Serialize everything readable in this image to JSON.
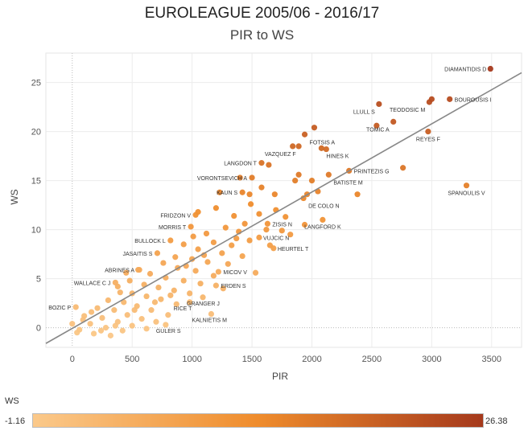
{
  "title": "EUROLEAGUE 2005/06 - 2016/17",
  "subtitle": "PIR to WS",
  "colors": {
    "low": "#fbc98a",
    "mid": "#ef8c2c",
    "high": "#a5391c",
    "trend": "#888888"
  },
  "legend": {
    "title": "WS",
    "min_label": "-1.16",
    "max_label": "26.38"
  },
  "chart_data": {
    "type": "scatter",
    "title": "EUROLEAGUE 2005/06 - 2016/17",
    "subtitle": "PIR to WS",
    "xlabel": "PIR",
    "ylabel": "WS",
    "xlim": [
      -220,
      3750
    ],
    "ylim": [
      -2,
      28
    ],
    "xticks": [
      0,
      500,
      1000,
      1500,
      2000,
      2500,
      3000,
      3500
    ],
    "yticks": [
      0,
      5,
      10,
      15,
      20,
      25
    ],
    "trend_line": {
      "x": [
        -220,
        3750
      ],
      "y": [
        -1.6,
        26.0
      ]
    },
    "color_range": [
      -1.16,
      26.38
    ],
    "labeled_points": [
      {
        "name": "DIAMANTIDIS D",
        "x": 3490,
        "y": 26.4
      },
      {
        "name": "BOUROUSIS I",
        "x": 3150,
        "y": 23.3
      },
      {
        "name": "LLULL S",
        "x": 2560,
        "y": 22.8
      },
      {
        "name": "TEODOSIC M",
        "x": 2980,
        "y": 23.0
      },
      {
        "name": "TOMIC A",
        "x": 2680,
        "y": 21.0
      },
      {
        "name": "REYES F",
        "x": 2970,
        "y": 20.0
      },
      {
        "name": "FOTSIS A",
        "x": 1940,
        "y": 19.7
      },
      {
        "name": "VAZQUEZ F",
        "x": 1840,
        "y": 18.5
      },
      {
        "name": "HINES K",
        "x": 2080,
        "y": 18.3
      },
      {
        "name": "LANGDON T",
        "x": 1580,
        "y": 16.8
      },
      {
        "name": "PRINTEZIS G",
        "x": 2310,
        "y": 16.0
      },
      {
        "name": "BATISTE M",
        "x": 2140,
        "y": 15.6
      },
      {
        "name": "VORONTSEVICH A",
        "x": 1500,
        "y": 15.3
      },
      {
        "name": "KAUN S",
        "x": 1420,
        "y": 13.8
      },
      {
        "name": "DE COLO N",
        "x": 1930,
        "y": 13.2
      },
      {
        "name": "SPANOULIS V",
        "x": 3290,
        "y": 14.5
      },
      {
        "name": "FRIDZON V",
        "x": 1030,
        "y": 11.5
      },
      {
        "name": "MORRIS T",
        "x": 990,
        "y": 10.3
      },
      {
        "name": "ZISIS N",
        "x": 1630,
        "y": 10.6
      },
      {
        "name": "LANGFORD K",
        "x": 2090,
        "y": 11.0
      },
      {
        "name": "BULLOCK L",
        "x": 820,
        "y": 8.9
      },
      {
        "name": "VUJCIC N",
        "x": 1560,
        "y": 9.2
      },
      {
        "name": "HEURTEL T",
        "x": 1680,
        "y": 8.1
      },
      {
        "name": "JASAITIS S",
        "x": 710,
        "y": 7.6
      },
      {
        "name": "ABRINES A",
        "x": 560,
        "y": 5.9
      },
      {
        "name": "MICOV V",
        "x": 1220,
        "y": 5.7
      },
      {
        "name": "WALLACE C J",
        "x": 360,
        "y": 4.6
      },
      {
        "name": "ERDEN S",
        "x": 1200,
        "y": 4.3
      },
      {
        "name": "GRANGER J",
        "x": 1090,
        "y": 3.1
      },
      {
        "name": "RICE T",
        "x": 980,
        "y": 2.6
      },
      {
        "name": "BOZIC P",
        "x": 30,
        "y": 2.1
      },
      {
        "name": "KALNIETIS M",
        "x": 1160,
        "y": 1.4
      },
      {
        "name": "GULER S",
        "x": 780,
        "y": 0.3
      }
    ],
    "unlabeled_points": [
      {
        "x": 3000,
        "y": 23.3
      },
      {
        "x": 2540,
        "y": 20.6
      },
      {
        "x": 2020,
        "y": 20.4
      },
      {
        "x": 2120,
        "y": 18.2
      },
      {
        "x": 1890,
        "y": 18.5
      },
      {
        "x": 1640,
        "y": 16.6
      },
      {
        "x": 2760,
        "y": 16.3
      },
      {
        "x": 2380,
        "y": 13.6
      },
      {
        "x": 1860,
        "y": 15.0
      },
      {
        "x": 1400,
        "y": 15.3
      },
      {
        "x": 1230,
        "y": 13.8
      },
      {
        "x": 1480,
        "y": 13.6
      },
      {
        "x": 1890,
        "y": 15.6
      },
      {
        "x": 1690,
        "y": 13.6
      },
      {
        "x": 1960,
        "y": 13.6
      },
      {
        "x": 2000,
        "y": 15.0
      },
      {
        "x": 1200,
        "y": 12.2
      },
      {
        "x": 1050,
        "y": 11.8
      },
      {
        "x": 1350,
        "y": 11.4
      },
      {
        "x": 1560,
        "y": 11.6
      },
      {
        "x": 1780,
        "y": 11.3
      },
      {
        "x": 1490,
        "y": 12.6
      },
      {
        "x": 1280,
        "y": 10.2
      },
      {
        "x": 1120,
        "y": 9.6
      },
      {
        "x": 1390,
        "y": 9.8
      },
      {
        "x": 1620,
        "y": 10.0
      },
      {
        "x": 1820,
        "y": 9.5
      },
      {
        "x": 1940,
        "y": 10.5
      },
      {
        "x": 1180,
        "y": 8.7
      },
      {
        "x": 1330,
        "y": 8.4
      },
      {
        "x": 1480,
        "y": 8.9
      },
      {
        "x": 1650,
        "y": 8.4
      },
      {
        "x": 930,
        "y": 8.5
      },
      {
        "x": 1050,
        "y": 8.0
      },
      {
        "x": 1250,
        "y": 7.6
      },
      {
        "x": 1420,
        "y": 7.3
      },
      {
        "x": 860,
        "y": 7.2
      },
      {
        "x": 1000,
        "y": 7.0
      },
      {
        "x": 1130,
        "y": 6.7
      },
      {
        "x": 1300,
        "y": 6.5
      },
      {
        "x": 760,
        "y": 6.6
      },
      {
        "x": 880,
        "y": 6.1
      },
      {
        "x": 1030,
        "y": 5.8
      },
      {
        "x": 1180,
        "y": 5.3
      },
      {
        "x": 650,
        "y": 5.5
      },
      {
        "x": 780,
        "y": 5.1
      },
      {
        "x": 930,
        "y": 4.8
      },
      {
        "x": 1070,
        "y": 4.5
      },
      {
        "x": 1260,
        "y": 4.0
      },
      {
        "x": 1530,
        "y": 5.6
      },
      {
        "x": 600,
        "y": 4.4
      },
      {
        "x": 720,
        "y": 4.1
      },
      {
        "x": 850,
        "y": 3.8
      },
      {
        "x": 980,
        "y": 3.5
      },
      {
        "x": 500,
        "y": 3.5
      },
      {
        "x": 620,
        "y": 3.2
      },
      {
        "x": 740,
        "y": 2.9
      },
      {
        "x": 870,
        "y": 2.4
      },
      {
        "x": 430,
        "y": 2.6
      },
      {
        "x": 540,
        "y": 2.2
      },
      {
        "x": 660,
        "y": 1.8
      },
      {
        "x": 800,
        "y": 1.3
      },
      {
        "x": 350,
        "y": 1.8
      },
      {
        "x": 460,
        "y": 1.3
      },
      {
        "x": 580,
        "y": 0.9
      },
      {
        "x": 700,
        "y": 0.6
      },
      {
        "x": 250,
        "y": 1.0
      },
      {
        "x": 380,
        "y": 0.6
      },
      {
        "x": 500,
        "y": 0.2
      },
      {
        "x": 620,
        "y": -0.1
      },
      {
        "x": 150,
        "y": 0.4
      },
      {
        "x": 280,
        "y": 0.0
      },
      {
        "x": 420,
        "y": -0.3
      },
      {
        "x": 60,
        "y": -0.2
      },
      {
        "x": 180,
        "y": -0.6
      },
      {
        "x": 320,
        "y": -0.8
      },
      {
        "x": 0,
        "y": 0.4
      },
      {
        "x": 100,
        "y": 1.2
      },
      {
        "x": 210,
        "y": 2.0
      },
      {
        "x": 300,
        "y": 2.8
      },
      {
        "x": 400,
        "y": 3.6
      },
      {
        "x": 480,
        "y": 4.8
      },
      {
        "x": 550,
        "y": 5.9
      },
      {
        "x": 450,
        "y": 5.6
      },
      {
        "x": 380,
        "y": 4.2
      },
      {
        "x": 160,
        "y": 1.6
      },
      {
        "x": 90,
        "y": 0.8
      },
      {
        "x": 40,
        "y": -0.5
      },
      {
        "x": 240,
        "y": -0.3
      },
      {
        "x": 360,
        "y": 0.2
      },
      {
        "x": 520,
        "y": 1.8
      },
      {
        "x": 690,
        "y": 2.6
      },
      {
        "x": 820,
        "y": 3.3
      },
      {
        "x": 950,
        "y": 6.3
      },
      {
        "x": 1100,
        "y": 7.4
      },
      {
        "x": 1370,
        "y": 9.1
      },
      {
        "x": 1440,
        "y": 10.6
      },
      {
        "x": 1700,
        "y": 12.0
      },
      {
        "x": 1750,
        "y": 9.9
      },
      {
        "x": 2050,
        "y": 13.9
      },
      {
        "x": 1580,
        "y": 14.3
      },
      {
        "x": 1010,
        "y": 9.3
      }
    ]
  }
}
